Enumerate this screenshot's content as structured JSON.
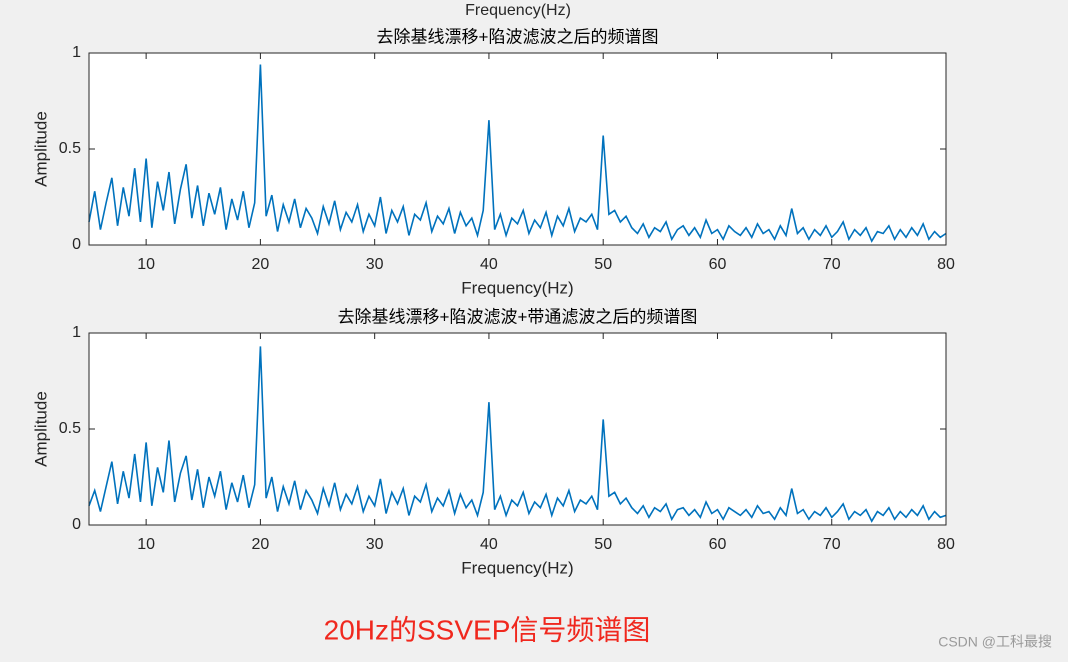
{
  "top_label": "Frequency(Hz)",
  "caption": "20Hz的SSVEP信号频谱图",
  "watermark": "CSDN @工科最搜",
  "chart_data": [
    {
      "type": "line",
      "title": "去除基线漂移+陷波滤波之后的频谱图",
      "x_label": "Frequency(Hz)",
      "y_label": "Amplitude",
      "xlim": [
        5,
        80
      ],
      "ylim": [
        0,
        1
      ],
      "xticks": [
        10,
        20,
        30,
        40,
        50,
        60,
        70,
        80
      ],
      "yticks": [
        0,
        0.5,
        1
      ],
      "x": [
        5,
        5.5,
        6,
        6.5,
        7,
        7.5,
        8,
        8.5,
        9,
        9.5,
        10,
        10.5,
        11,
        11.5,
        12,
        12.5,
        13,
        13.5,
        14,
        14.5,
        15,
        15.5,
        16,
        16.5,
        17,
        17.5,
        18,
        18.5,
        19,
        19.5,
        20,
        20.5,
        21,
        21.5,
        22,
        22.5,
        23,
        23.5,
        24,
        24.5,
        25,
        25.5,
        26,
        26.5,
        27,
        27.5,
        28,
        28.5,
        29,
        29.5,
        30,
        30.5,
        31,
        31.5,
        32,
        32.5,
        33,
        33.5,
        34,
        34.5,
        35,
        35.5,
        36,
        36.5,
        37,
        37.5,
        38,
        38.5,
        39,
        39.5,
        40,
        40.5,
        41,
        41.5,
        42,
        42.5,
        43,
        43.5,
        44,
        44.5,
        45,
        45.5,
        46,
        46.5,
        47,
        47.5,
        48,
        48.5,
        49,
        49.5,
        50,
        50.5,
        51,
        51.5,
        52,
        52.5,
        53,
        53.5,
        54,
        54.5,
        55,
        55.5,
        56,
        56.5,
        57,
        57.5,
        58,
        58.5,
        59,
        59.5,
        60,
        60.5,
        61,
        61.5,
        62,
        62.5,
        63,
        63.5,
        64,
        64.5,
        65,
        65.5,
        66,
        66.5,
        67,
        67.5,
        68,
        68.5,
        69,
        69.5,
        70,
        70.5,
        71,
        71.5,
        72,
        72.5,
        73,
        73.5,
        74,
        74.5,
        75,
        75.5,
        76,
        76.5,
        77,
        77.5,
        78,
        78.5,
        79,
        79.5,
        80
      ],
      "series": [
        {
          "color": "#0072bd",
          "values": [
            0.12,
            0.28,
            0.08,
            0.22,
            0.35,
            0.1,
            0.3,
            0.15,
            0.4,
            0.12,
            0.45,
            0.09,
            0.33,
            0.18,
            0.38,
            0.11,
            0.29,
            0.42,
            0.14,
            0.31,
            0.1,
            0.27,
            0.16,
            0.3,
            0.08,
            0.24,
            0.13,
            0.28,
            0.09,
            0.22,
            0.94,
            0.15,
            0.26,
            0.07,
            0.21,
            0.12,
            0.24,
            0.09,
            0.19,
            0.14,
            0.06,
            0.2,
            0.11,
            0.23,
            0.08,
            0.17,
            0.12,
            0.21,
            0.07,
            0.16,
            0.1,
            0.25,
            0.06,
            0.18,
            0.12,
            0.2,
            0.05,
            0.16,
            0.13,
            0.22,
            0.07,
            0.15,
            0.11,
            0.19,
            0.06,
            0.17,
            0.1,
            0.14,
            0.05,
            0.18,
            0.65,
            0.08,
            0.16,
            0.05,
            0.14,
            0.11,
            0.18,
            0.06,
            0.13,
            0.09,
            0.17,
            0.05,
            0.15,
            0.1,
            0.19,
            0.07,
            0.14,
            0.12,
            0.16,
            0.08,
            0.57,
            0.16,
            0.18,
            0.12,
            0.15,
            0.09,
            0.06,
            0.11,
            0.04,
            0.09,
            0.07,
            0.12,
            0.03,
            0.08,
            0.1,
            0.05,
            0.09,
            0.04,
            0.13,
            0.06,
            0.08,
            0.03,
            0.1,
            0.07,
            0.05,
            0.09,
            0.04,
            0.11,
            0.06,
            0.08,
            0.03,
            0.1,
            0.05,
            0.19,
            0.06,
            0.09,
            0.03,
            0.08,
            0.05,
            0.1,
            0.04,
            0.07,
            0.12,
            0.03,
            0.08,
            0.05,
            0.09,
            0.02,
            0.07,
            0.06,
            0.1,
            0.03,
            0.08,
            0.04,
            0.09,
            0.05,
            0.11,
            0.03,
            0.07,
            0.04,
            0.06
          ]
        }
      ]
    },
    {
      "type": "line",
      "title": "去除基线漂移+陷波滤波+带通滤波之后的频谱图",
      "x_label": "Frequency(Hz)",
      "y_label": "Amplitude",
      "xlim": [
        5,
        80
      ],
      "ylim": [
        0,
        1
      ],
      "xticks": [
        10,
        20,
        30,
        40,
        50,
        60,
        70,
        80
      ],
      "yticks": [
        0,
        0.5,
        1
      ],
      "x": [
        5,
        5.5,
        6,
        6.5,
        7,
        7.5,
        8,
        8.5,
        9,
        9.5,
        10,
        10.5,
        11,
        11.5,
        12,
        12.5,
        13,
        13.5,
        14,
        14.5,
        15,
        15.5,
        16,
        16.5,
        17,
        17.5,
        18,
        18.5,
        19,
        19.5,
        20,
        20.5,
        21,
        21.5,
        22,
        22.5,
        23,
        23.5,
        24,
        24.5,
        25,
        25.5,
        26,
        26.5,
        27,
        27.5,
        28,
        28.5,
        29,
        29.5,
        30,
        30.5,
        31,
        31.5,
        32,
        32.5,
        33,
        33.5,
        34,
        34.5,
        35,
        35.5,
        36,
        36.5,
        37,
        37.5,
        38,
        38.5,
        39,
        39.5,
        40,
        40.5,
        41,
        41.5,
        42,
        42.5,
        43,
        43.5,
        44,
        44.5,
        45,
        45.5,
        46,
        46.5,
        47,
        47.5,
        48,
        48.5,
        49,
        49.5,
        50,
        50.5,
        51,
        51.5,
        52,
        52.5,
        53,
        53.5,
        54,
        54.5,
        55,
        55.5,
        56,
        56.5,
        57,
        57.5,
        58,
        58.5,
        59,
        59.5,
        60,
        60.5,
        61,
        61.5,
        62,
        62.5,
        63,
        63.5,
        64,
        64.5,
        65,
        65.5,
        66,
        66.5,
        67,
        67.5,
        68,
        68.5,
        69,
        69.5,
        70,
        70.5,
        71,
        71.5,
        72,
        72.5,
        73,
        73.5,
        74,
        74.5,
        75,
        75.5,
        76,
        76.5,
        77,
        77.5,
        78,
        78.5,
        79,
        79.5,
        80
      ],
      "series": [
        {
          "color": "#0072bd",
          "values": [
            0.1,
            0.18,
            0.07,
            0.2,
            0.33,
            0.11,
            0.28,
            0.14,
            0.37,
            0.12,
            0.43,
            0.1,
            0.3,
            0.17,
            0.44,
            0.12,
            0.27,
            0.36,
            0.13,
            0.29,
            0.09,
            0.25,
            0.15,
            0.28,
            0.08,
            0.22,
            0.12,
            0.26,
            0.09,
            0.21,
            0.93,
            0.14,
            0.25,
            0.07,
            0.2,
            0.11,
            0.23,
            0.08,
            0.18,
            0.13,
            0.06,
            0.19,
            0.1,
            0.22,
            0.08,
            0.16,
            0.11,
            0.2,
            0.07,
            0.15,
            0.1,
            0.24,
            0.06,
            0.17,
            0.11,
            0.19,
            0.05,
            0.15,
            0.12,
            0.21,
            0.07,
            0.14,
            0.1,
            0.18,
            0.06,
            0.16,
            0.09,
            0.13,
            0.05,
            0.17,
            0.64,
            0.08,
            0.15,
            0.05,
            0.13,
            0.1,
            0.17,
            0.06,
            0.12,
            0.09,
            0.16,
            0.05,
            0.14,
            0.1,
            0.18,
            0.07,
            0.13,
            0.11,
            0.15,
            0.08,
            0.55,
            0.15,
            0.17,
            0.11,
            0.14,
            0.09,
            0.06,
            0.1,
            0.04,
            0.09,
            0.07,
            0.11,
            0.03,
            0.08,
            0.09,
            0.05,
            0.08,
            0.04,
            0.12,
            0.06,
            0.08,
            0.03,
            0.09,
            0.07,
            0.05,
            0.08,
            0.04,
            0.1,
            0.06,
            0.07,
            0.03,
            0.09,
            0.05,
            0.19,
            0.06,
            0.08,
            0.03,
            0.07,
            0.05,
            0.09,
            0.04,
            0.07,
            0.11,
            0.03,
            0.07,
            0.05,
            0.08,
            0.02,
            0.07,
            0.05,
            0.09,
            0.03,
            0.07,
            0.04,
            0.08,
            0.05,
            0.1,
            0.03,
            0.07,
            0.04,
            0.05
          ]
        }
      ]
    }
  ]
}
